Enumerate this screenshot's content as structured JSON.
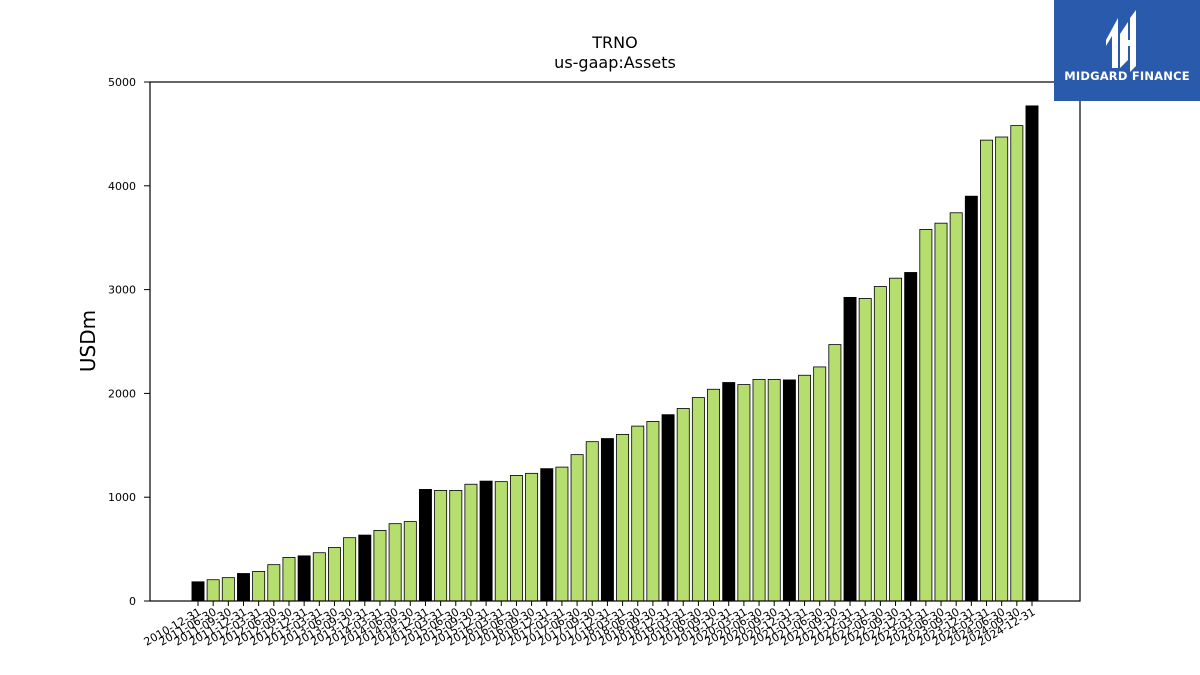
{
  "chart_data": {
    "type": "bar",
    "title": "TRNO",
    "subtitle": "us-gaap:Assets",
    "ylabel": "USDm",
    "xlabel": "",
    "ylim": [
      0,
      5000
    ],
    "yticks": [
      0,
      1000,
      2000,
      3000,
      4000,
      5000
    ],
    "grid": false,
    "colors": {
      "quarter": "#b5de6e",
      "year_end": "#000000",
      "edge": "#000000"
    },
    "categories": [
      "2010-12-31",
      "2011-06-30",
      "2011-09-30",
      "2011-12-31",
      "2012-03-31",
      "2012-06-30",
      "2012-09-30",
      "2012-12-31",
      "2013-03-31",
      "2013-06-30",
      "2013-09-30",
      "2013-12-31",
      "2014-03-31",
      "2014-06-30",
      "2014-09-30",
      "2014-12-31",
      "2015-03-31",
      "2015-06-30",
      "2015-09-30",
      "2015-12-31",
      "2016-03-31",
      "2016-06-30",
      "2016-09-30",
      "2016-12-31",
      "2017-03-31",
      "2017-06-30",
      "2017-09-30",
      "2017-12-31",
      "2018-03-31",
      "2018-06-30",
      "2018-09-30",
      "2018-12-31",
      "2019-03-31",
      "2019-06-30",
      "2019-09-30",
      "2019-12-31",
      "2020-03-31",
      "2020-06-30",
      "2020-09-30",
      "2020-12-31",
      "2021-03-31",
      "2021-06-30",
      "2021-09-30",
      "2021-12-31",
      "2022-03-31",
      "2022-06-30",
      "2022-09-30",
      "2022-12-31",
      "2023-03-31",
      "2023-06-30",
      "2023-09-30",
      "2023-12-31",
      "2024-03-31",
      "2024-06-30",
      "2024-09-30",
      "2024-12-31"
    ],
    "values": [
      185,
      205,
      225,
      265,
      285,
      350,
      420,
      435,
      465,
      515,
      610,
      635,
      680,
      745,
      765,
      1075,
      1065,
      1065,
      1125,
      1155,
      1150,
      1210,
      1230,
      1275,
      1290,
      1410,
      1535,
      1565,
      1605,
      1685,
      1730,
      1795,
      1855,
      1960,
      2040,
      2105,
      2085,
      2135,
      2135,
      2130,
      2175,
      2255,
      2470,
      2925,
      2915,
      3030,
      3110,
      3165,
      3580,
      3640,
      3740,
      3900,
      4440,
      4470,
      4580,
      4770
    ]
  },
  "logo": {
    "name": "midgard-logo-icon",
    "text": "MIDGARD FINANCE"
  }
}
